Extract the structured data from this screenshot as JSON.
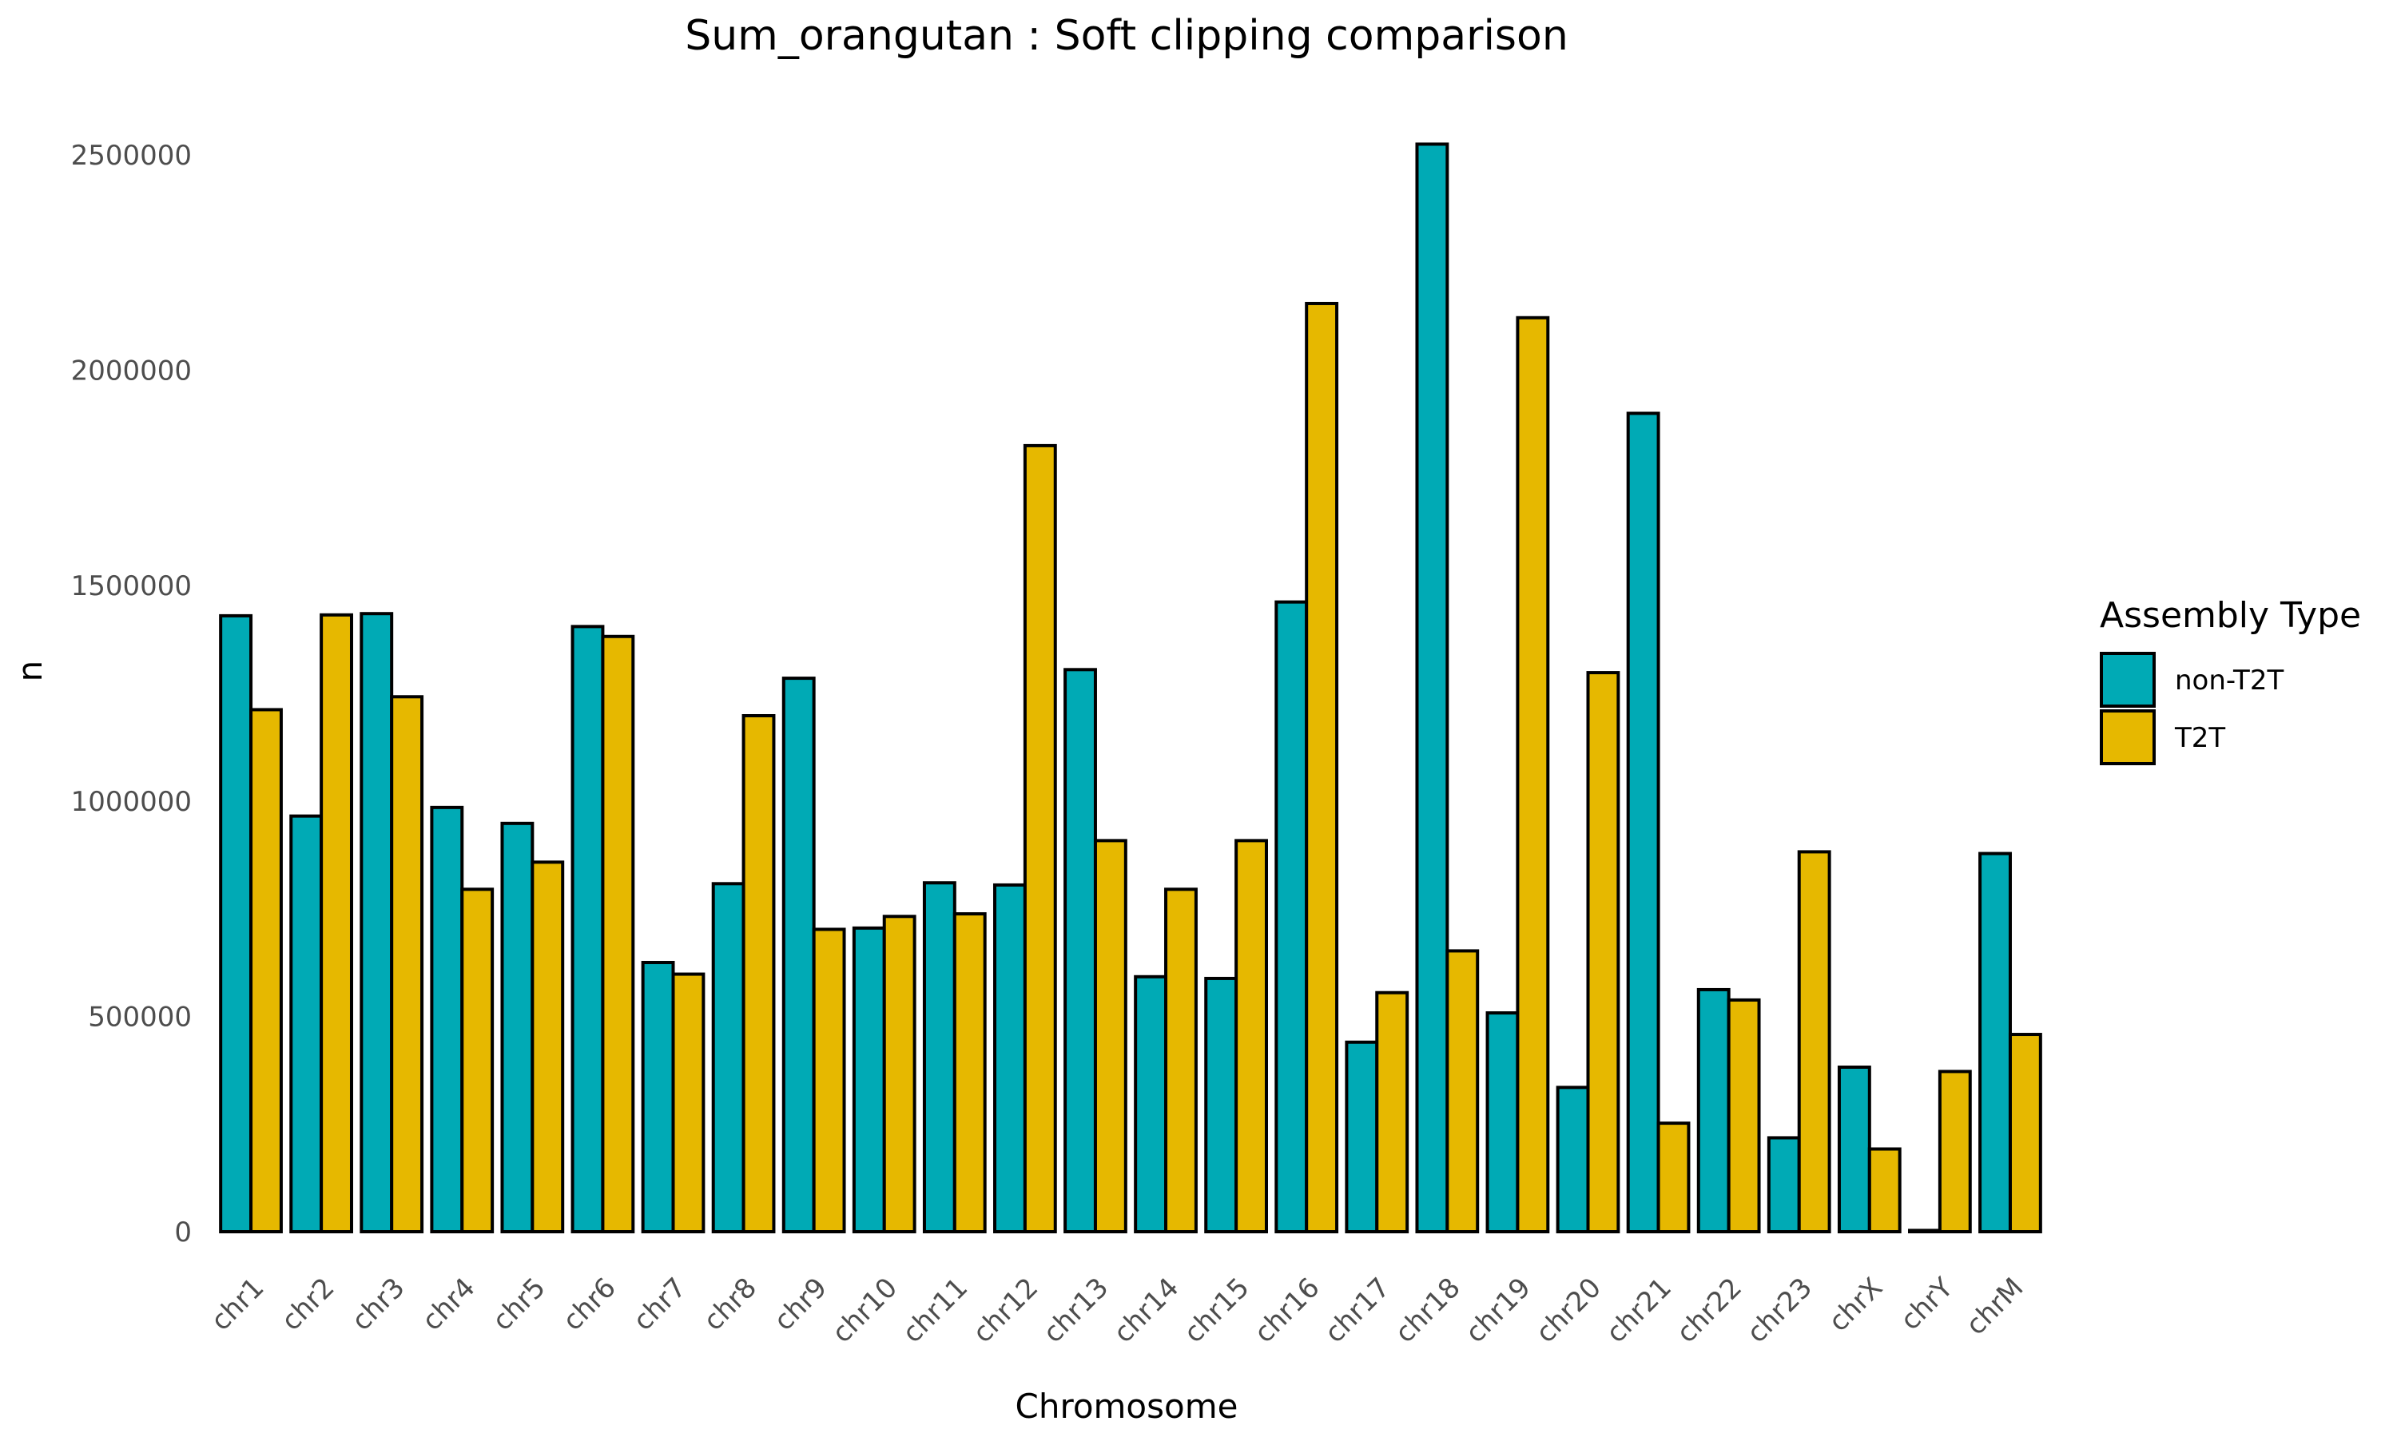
{
  "chart_data": {
    "type": "bar",
    "title": "Sum_orangutan : Soft clipping comparison",
    "xlabel": "Chromosome",
    "ylabel": "n",
    "ylim": [
      0,
      2600000
    ],
    "yticks": [
      0,
      500000,
      1000000,
      1500000,
      2000000,
      2500000
    ],
    "ytick_labels": [
      "0",
      "500000",
      "1000000",
      "1500000",
      "2000000",
      "2500000"
    ],
    "grid": false,
    "legend_position": "right",
    "legend_title": "Assembly Type",
    "categories": [
      "chr1",
      "chr2",
      "chr3",
      "chr4",
      "chr5",
      "chr6",
      "chr7",
      "chr8",
      "chr9",
      "chr10",
      "chr11",
      "chr12",
      "chr13",
      "chr14",
      "chr15",
      "chr16",
      "chr17",
      "chr18",
      "chr19",
      "chr20",
      "chr21",
      "chr22",
      "chr23",
      "chrX",
      "chrY",
      "chrM"
    ],
    "series": [
      {
        "name": "non-T2T",
        "color": "#00AAB5",
        "values": [
          1430000,
          965000,
          1435000,
          985000,
          948000,
          1405000,
          625000,
          808000,
          1285000,
          705000,
          810000,
          805000,
          1305000,
          592000,
          588000,
          1462000,
          440000,
          2525000,
          508000,
          335000,
          1900000,
          562000,
          218000,
          382000,
          3000,
          878000
        ]
      },
      {
        "name": "T2T",
        "color": "#E6B800",
        "values": [
          1212000,
          1432000,
          1242000,
          795000,
          858000,
          1382000,
          598000,
          1198000,
          702000,
          732000,
          738000,
          1825000,
          908000,
          795000,
          908000,
          2155000,
          555000,
          652000,
          2122000,
          1298000,
          252000,
          538000,
          882000,
          192000,
          372000,
          458000
        ]
      }
    ]
  }
}
